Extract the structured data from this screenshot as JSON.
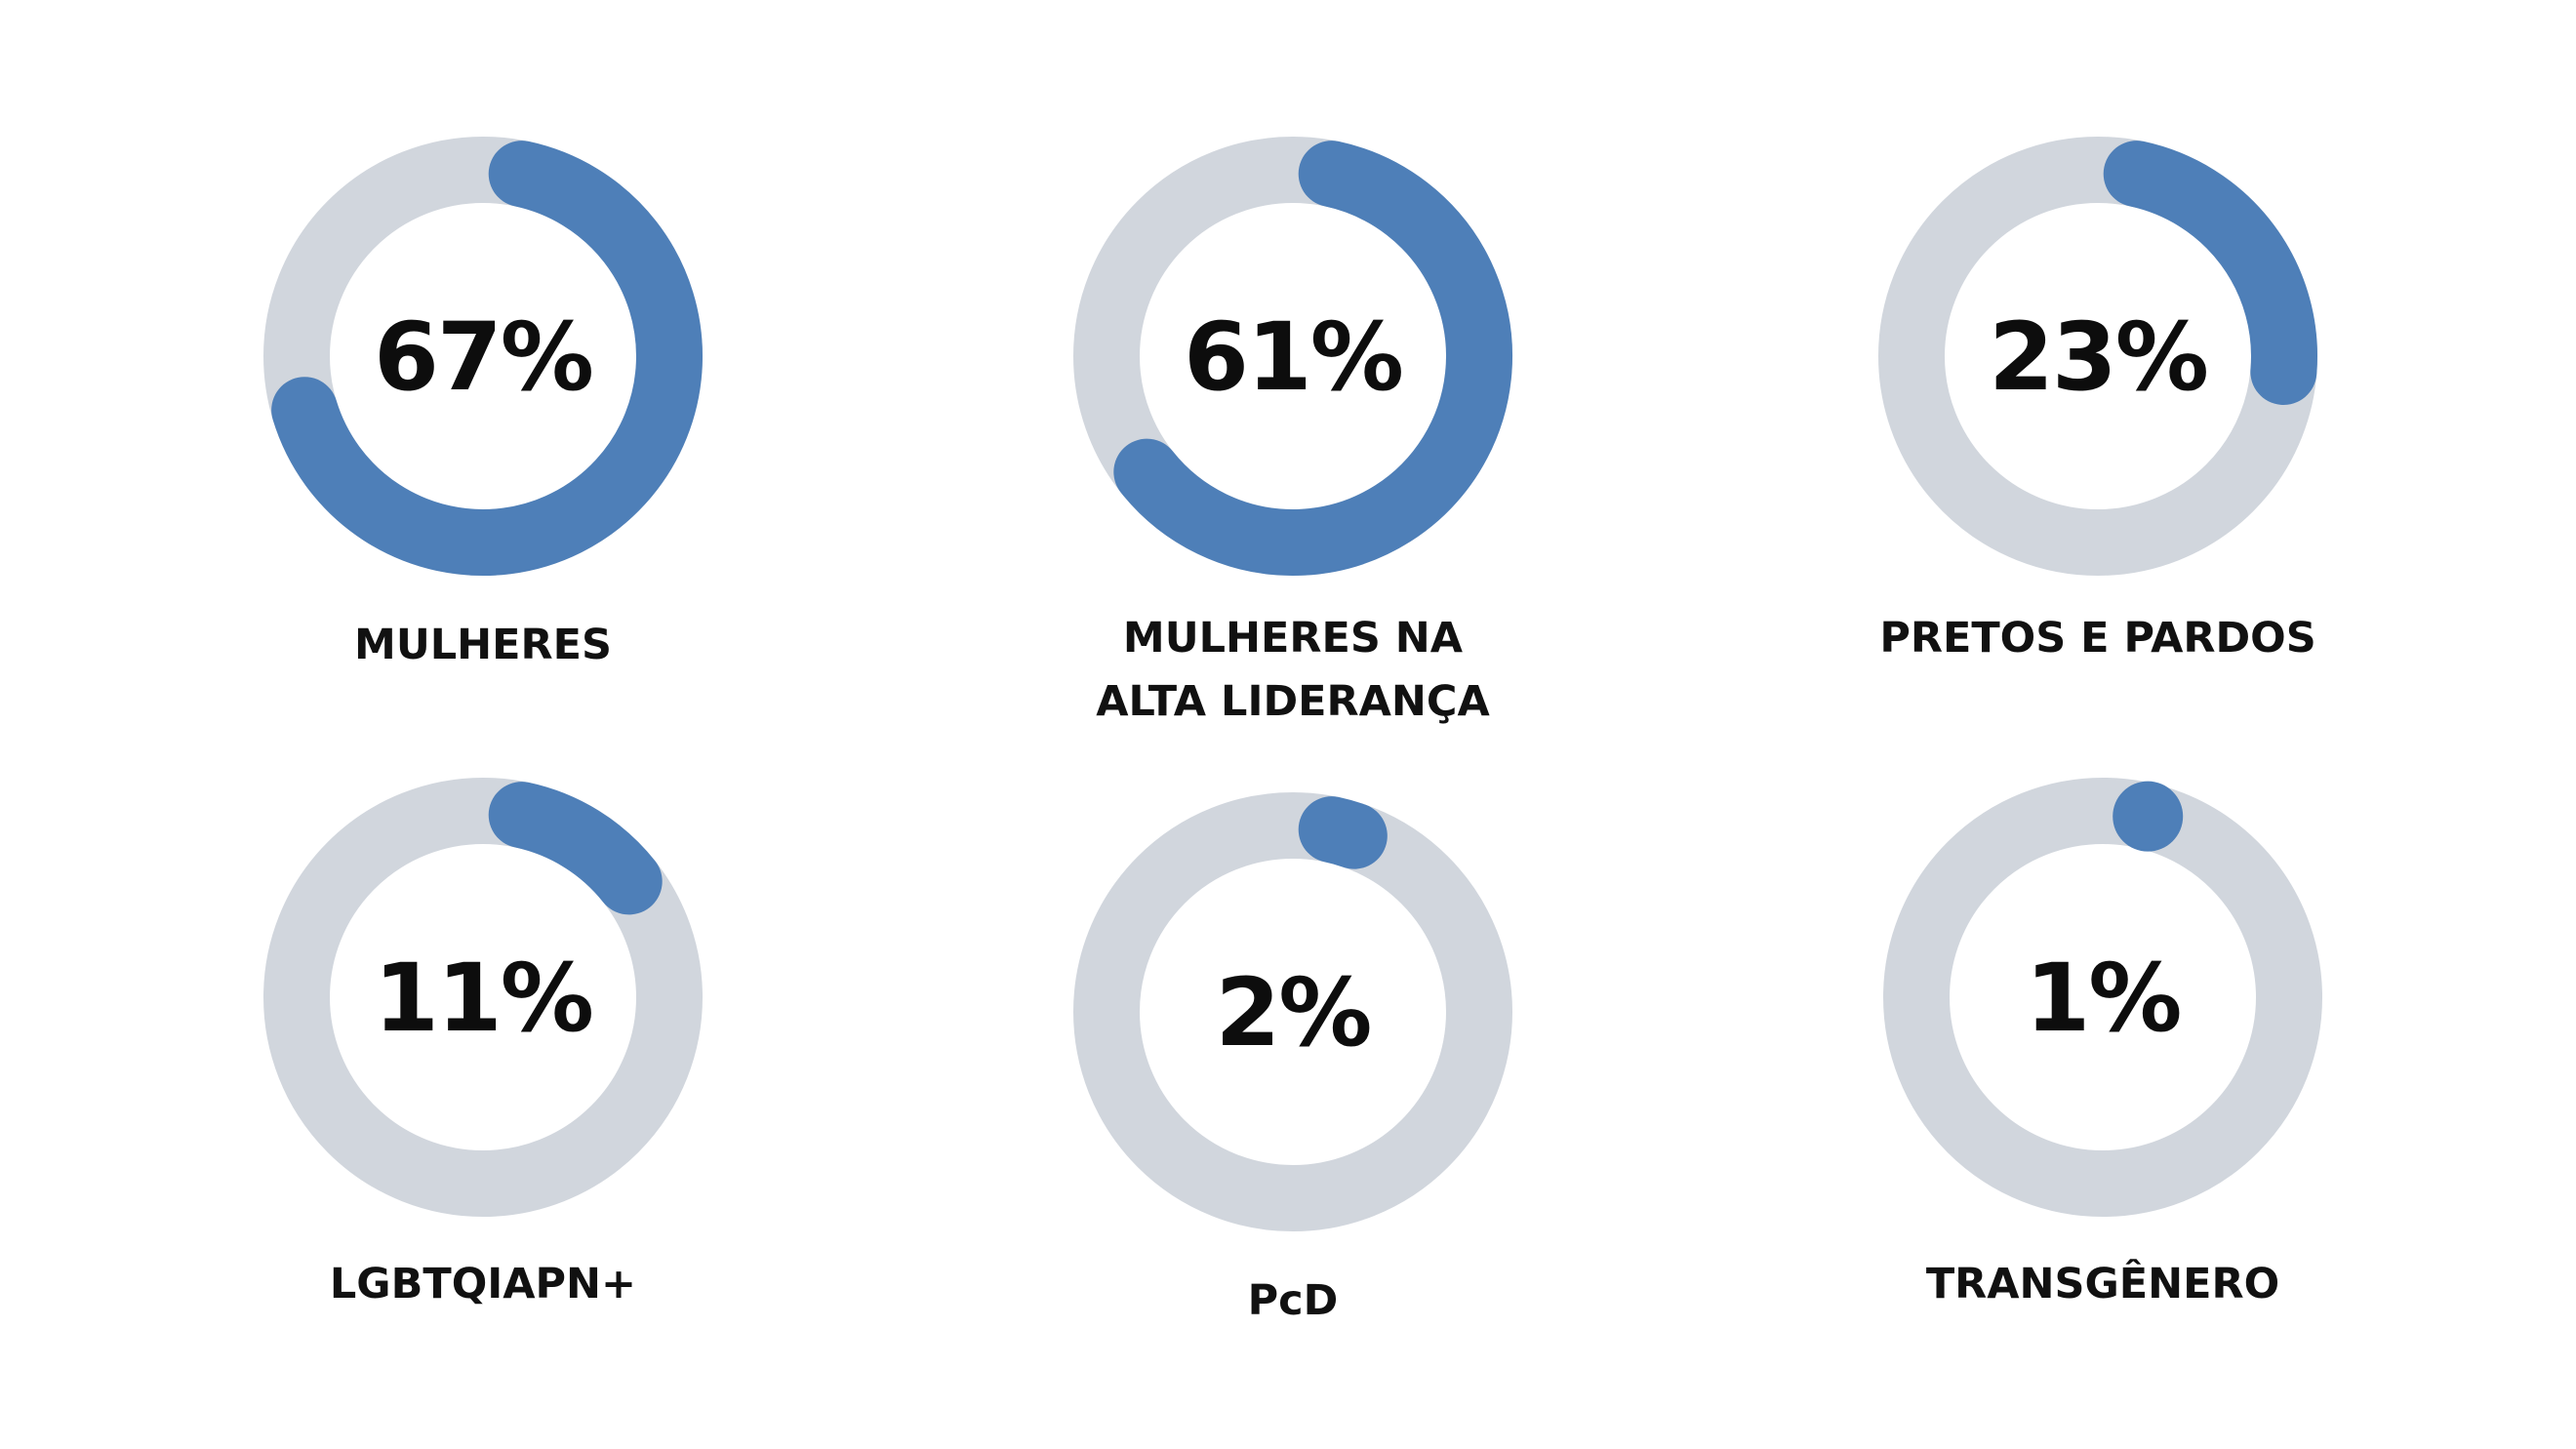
{
  "colors": {
    "track": "#d1d6dd",
    "fill": "#4e7fb8",
    "text": "#0d0d0d",
    "background": "#ffffff"
  },
  "chart_data": [
    {
      "type": "pie",
      "value": 67,
      "max": 100,
      "value_label": "67%",
      "label_lines": [
        "MULHERES"
      ]
    },
    {
      "type": "pie",
      "value": 61,
      "max": 100,
      "value_label": "61%",
      "label_lines": [
        "MULHERES NA",
        "ALTA LIDERANÇA"
      ]
    },
    {
      "type": "pie",
      "value": 23,
      "max": 100,
      "value_label": "23%",
      "label_lines": [
        "PRETOS E PARDOS"
      ]
    },
    {
      "type": "pie",
      "value": 11,
      "max": 100,
      "value_label": "11%",
      "label_lines": [
        "LGBTQIAPN+"
      ]
    },
    {
      "type": "pie",
      "value": 2,
      "max": 100,
      "value_label": "2%",
      "label_lines": [
        "PcD"
      ]
    },
    {
      "type": "pie",
      "value": 1,
      "max": 100,
      "value_label": "1%",
      "label_lines": [
        "TRANSGÊNERO"
      ]
    }
  ]
}
